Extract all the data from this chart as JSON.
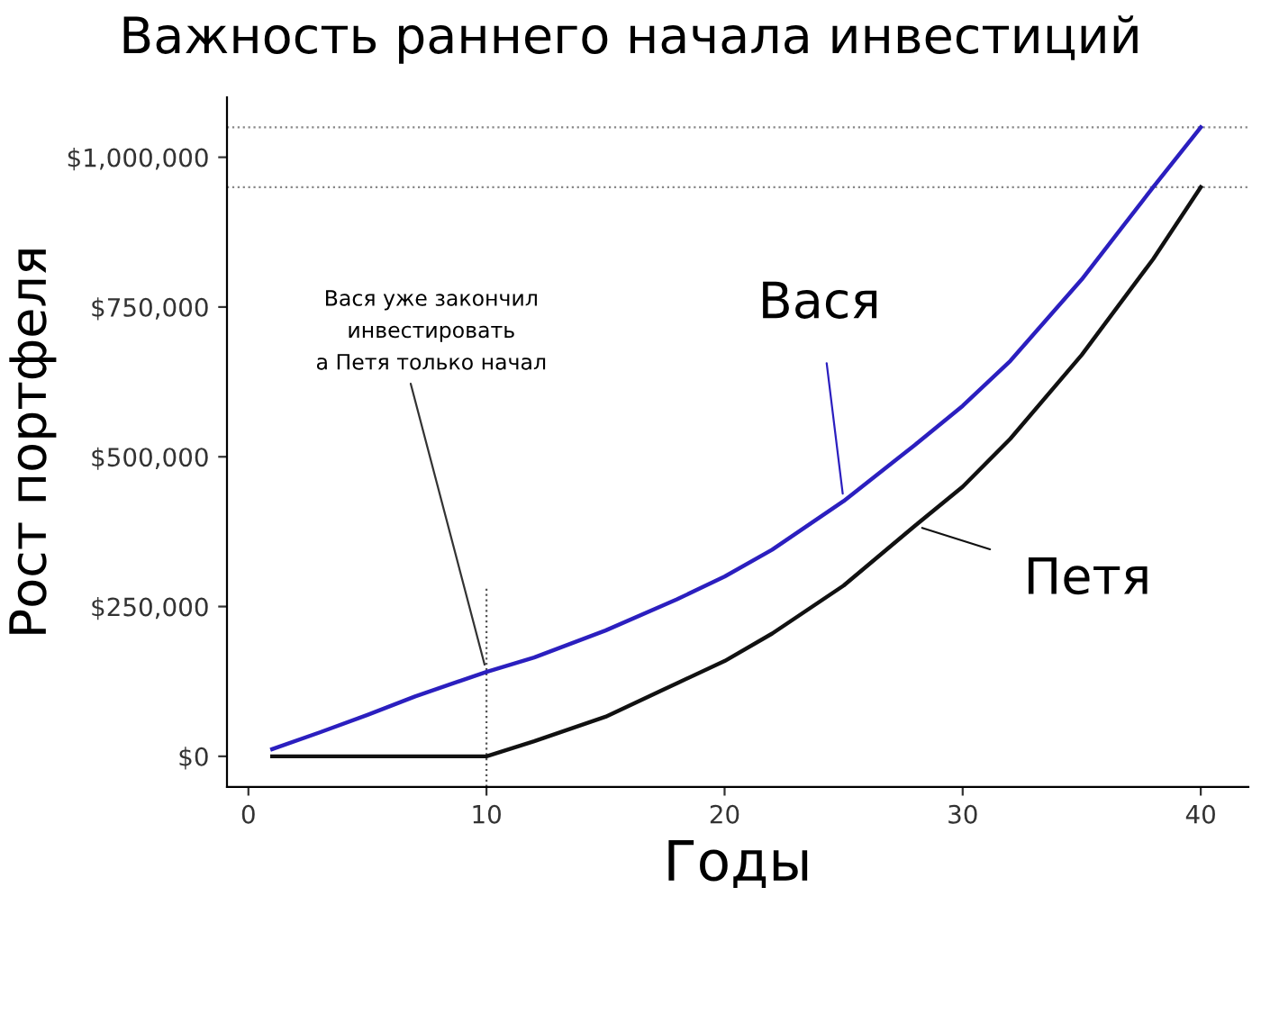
{
  "chart_data": {
    "type": "line",
    "title": "Важность раннего начала инвестиций",
    "xlabel": "Годы",
    "ylabel": "Рост портфеля",
    "xlim": [
      -0.9,
      42
    ],
    "ylim": [
      -51000,
      1100000
    ],
    "xticks": [
      0,
      10,
      20,
      30,
      40
    ],
    "yticks": [
      {
        "value": 0,
        "label": "$0"
      },
      {
        "value": 250000,
        "label": "$250,000"
      },
      {
        "value": 500000,
        "label": "$500,000"
      },
      {
        "value": 750000,
        "label": "$750,000"
      },
      {
        "value": 1000000,
        "label": "$1,000,000"
      }
    ],
    "grid": false,
    "legend": false,
    "marker": "none",
    "line_style": "solid",
    "series": [
      {
        "name": "Вася",
        "color": "#2b1fbf",
        "x": [
          1,
          3,
          5,
          7,
          10,
          12,
          15,
          18,
          20,
          22,
          25,
          28,
          30,
          32,
          35,
          38,
          40
        ],
        "values": [
          12000,
          40000,
          69000,
          100000,
          141000,
          165000,
          210000,
          262000,
          300000,
          345000,
          426000,
          520000,
          585000,
          660000,
          796000,
          950000,
          1050000
        ]
      },
      {
        "name": "Петя",
        "color": "#111111",
        "x": [
          1,
          5,
          10,
          12,
          15,
          18,
          20,
          22,
          25,
          28,
          30,
          32,
          35,
          38,
          40
        ],
        "values": [
          0,
          0,
          0,
          25000,
          66000,
          122000,
          159000,
          205000,
          285000,
          385000,
          450000,
          530000,
          670000,
          830000,
          950000
        ]
      }
    ],
    "ref_lines": [
      {
        "axis": "x",
        "value": 10,
        "color": "#555555",
        "line_style": "dotted"
      },
      {
        "axis": "y",
        "value": 1050000,
        "color": "#888888",
        "line_style": "dotted"
      },
      {
        "axis": "y",
        "value": 950000,
        "color": "#888888",
        "line_style": "dotted"
      }
    ],
    "annotations": [
      {
        "text": "Вася уже закончил\nинвестировать\nа Петя только начал",
        "x": 10,
        "y": 141000
      }
    ]
  }
}
